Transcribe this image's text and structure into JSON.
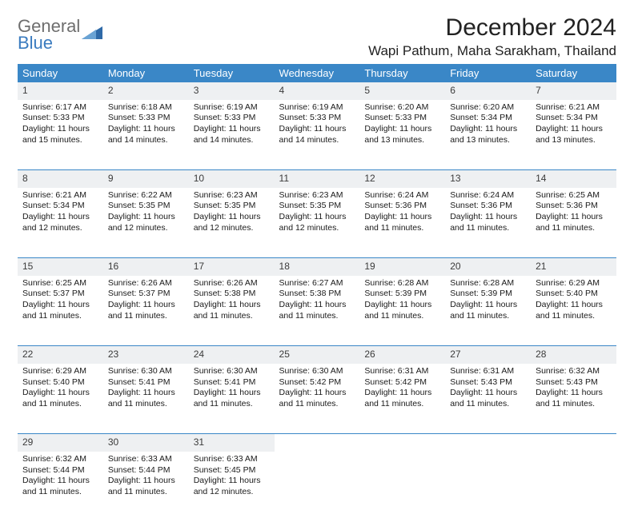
{
  "logo": {
    "line1": "General",
    "line2": "Blue",
    "general_color": "#6e6e6e",
    "blue_color": "#3a7bbf",
    "triangle_color": "#2f6aa8"
  },
  "title": "December 2024",
  "location": "Wapi Pathum, Maha Sarakham, Thailand",
  "weekdays": [
    "Sunday",
    "Monday",
    "Tuesday",
    "Wednesday",
    "Thursday",
    "Friday",
    "Saturday"
  ],
  "header_bg": "#3a87c7",
  "daynum_bg": "#eef0f2",
  "border_color": "#3a87c7",
  "text_color": "#1a1a1a",
  "days": [
    {
      "n": "1",
      "sr": "6:17 AM",
      "ss": "5:33 PM",
      "dl": "11 hours and 15 minutes."
    },
    {
      "n": "2",
      "sr": "6:18 AM",
      "ss": "5:33 PM",
      "dl": "11 hours and 14 minutes."
    },
    {
      "n": "3",
      "sr": "6:19 AM",
      "ss": "5:33 PM",
      "dl": "11 hours and 14 minutes."
    },
    {
      "n": "4",
      "sr": "6:19 AM",
      "ss": "5:33 PM",
      "dl": "11 hours and 14 minutes."
    },
    {
      "n": "5",
      "sr": "6:20 AM",
      "ss": "5:33 PM",
      "dl": "11 hours and 13 minutes."
    },
    {
      "n": "6",
      "sr": "6:20 AM",
      "ss": "5:34 PM",
      "dl": "11 hours and 13 minutes."
    },
    {
      "n": "7",
      "sr": "6:21 AM",
      "ss": "5:34 PM",
      "dl": "11 hours and 13 minutes."
    },
    {
      "n": "8",
      "sr": "6:21 AM",
      "ss": "5:34 PM",
      "dl": "11 hours and 12 minutes."
    },
    {
      "n": "9",
      "sr": "6:22 AM",
      "ss": "5:35 PM",
      "dl": "11 hours and 12 minutes."
    },
    {
      "n": "10",
      "sr": "6:23 AM",
      "ss": "5:35 PM",
      "dl": "11 hours and 12 minutes."
    },
    {
      "n": "11",
      "sr": "6:23 AM",
      "ss": "5:35 PM",
      "dl": "11 hours and 12 minutes."
    },
    {
      "n": "12",
      "sr": "6:24 AM",
      "ss": "5:36 PM",
      "dl": "11 hours and 11 minutes."
    },
    {
      "n": "13",
      "sr": "6:24 AM",
      "ss": "5:36 PM",
      "dl": "11 hours and 11 minutes."
    },
    {
      "n": "14",
      "sr": "6:25 AM",
      "ss": "5:36 PM",
      "dl": "11 hours and 11 minutes."
    },
    {
      "n": "15",
      "sr": "6:25 AM",
      "ss": "5:37 PM",
      "dl": "11 hours and 11 minutes."
    },
    {
      "n": "16",
      "sr": "6:26 AM",
      "ss": "5:37 PM",
      "dl": "11 hours and 11 minutes."
    },
    {
      "n": "17",
      "sr": "6:26 AM",
      "ss": "5:38 PM",
      "dl": "11 hours and 11 minutes."
    },
    {
      "n": "18",
      "sr": "6:27 AM",
      "ss": "5:38 PM",
      "dl": "11 hours and 11 minutes."
    },
    {
      "n": "19",
      "sr": "6:28 AM",
      "ss": "5:39 PM",
      "dl": "11 hours and 11 minutes."
    },
    {
      "n": "20",
      "sr": "6:28 AM",
      "ss": "5:39 PM",
      "dl": "11 hours and 11 minutes."
    },
    {
      "n": "21",
      "sr": "6:29 AM",
      "ss": "5:40 PM",
      "dl": "11 hours and 11 minutes."
    },
    {
      "n": "22",
      "sr": "6:29 AM",
      "ss": "5:40 PM",
      "dl": "11 hours and 11 minutes."
    },
    {
      "n": "23",
      "sr": "6:30 AM",
      "ss": "5:41 PM",
      "dl": "11 hours and 11 minutes."
    },
    {
      "n": "24",
      "sr": "6:30 AM",
      "ss": "5:41 PM",
      "dl": "11 hours and 11 minutes."
    },
    {
      "n": "25",
      "sr": "6:30 AM",
      "ss": "5:42 PM",
      "dl": "11 hours and 11 minutes."
    },
    {
      "n": "26",
      "sr": "6:31 AM",
      "ss": "5:42 PM",
      "dl": "11 hours and 11 minutes."
    },
    {
      "n": "27",
      "sr": "6:31 AM",
      "ss": "5:43 PM",
      "dl": "11 hours and 11 minutes."
    },
    {
      "n": "28",
      "sr": "6:32 AM",
      "ss": "5:43 PM",
      "dl": "11 hours and 11 minutes."
    },
    {
      "n": "29",
      "sr": "6:32 AM",
      "ss": "5:44 PM",
      "dl": "11 hours and 11 minutes."
    },
    {
      "n": "30",
      "sr": "6:33 AM",
      "ss": "5:44 PM",
      "dl": "11 hours and 11 minutes."
    },
    {
      "n": "31",
      "sr": "6:33 AM",
      "ss": "5:45 PM",
      "dl": "11 hours and 12 minutes."
    }
  ],
  "labels": {
    "sunrise": "Sunrise: ",
    "sunset": "Sunset: ",
    "daylight": "Daylight: "
  }
}
